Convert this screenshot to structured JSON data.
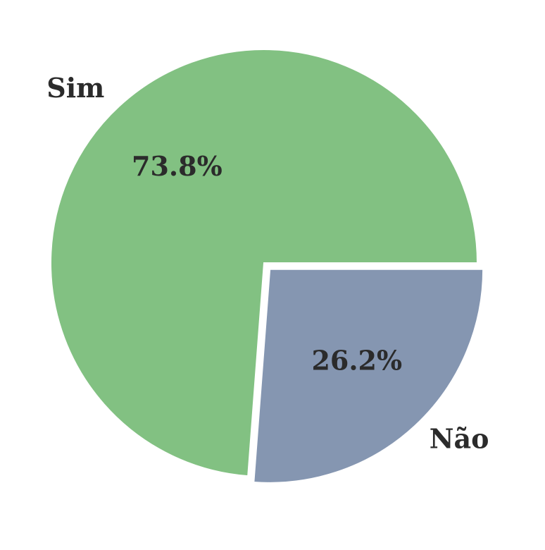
{
  "chart_data": {
    "type": "pie",
    "title": "",
    "slices": [
      {
        "label": "Sim",
        "percent_label": "73.8%",
        "value": 73.8,
        "color": "#82c182",
        "exploded": false
      },
      {
        "label": "Não",
        "percent_label": "26.2%",
        "value": 26.2,
        "color": "#8596b1",
        "exploded": true
      }
    ],
    "start_angle_deg": 0,
    "direction": "counterclockwise",
    "legend": "none"
  }
}
